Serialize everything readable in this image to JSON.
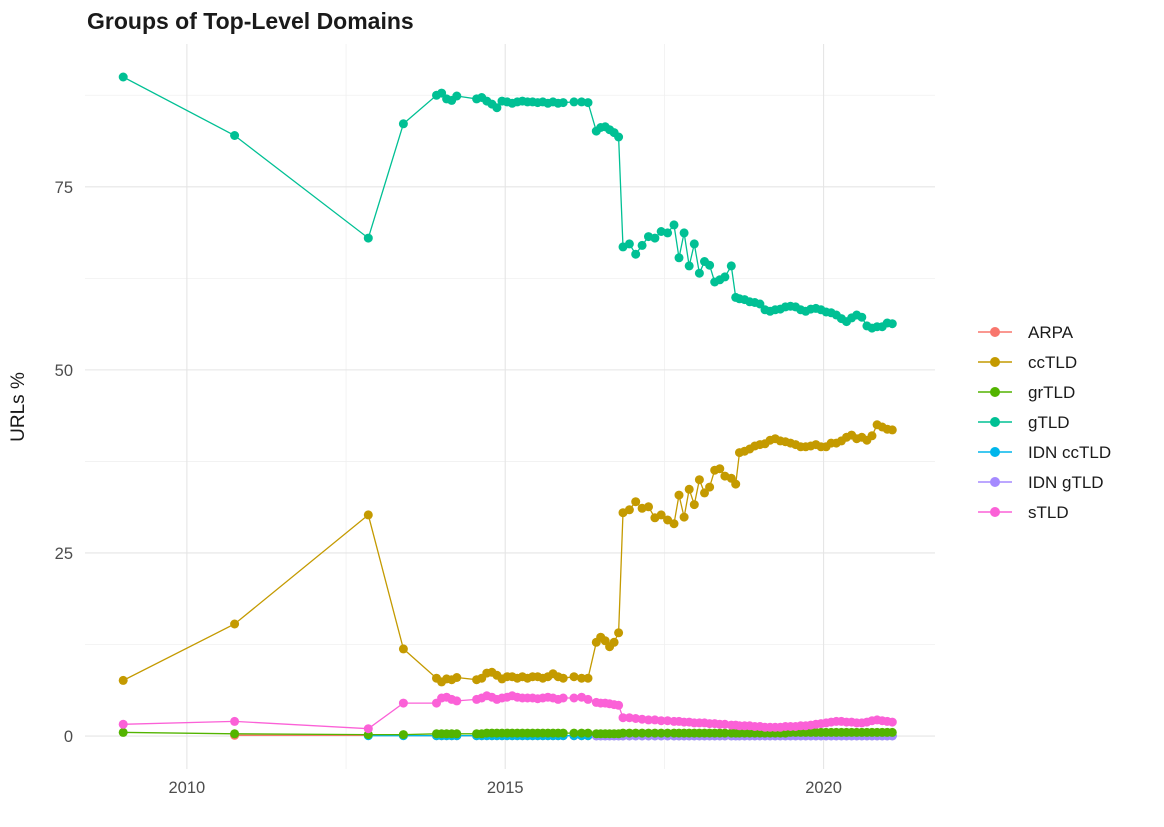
{
  "title": "Groups of Top-Level Domains",
  "chart_data": {
    "type": "line",
    "title": "Groups of Top-Level Domains",
    "xlabel": "",
    "ylabel": "URLs %",
    "legend_position": "right",
    "grid": "major and minor, light gray on white",
    "marker": "filled circles with connecting lines",
    "x_axis": {
      "tick_labels": [
        "2010",
        "2015",
        "2020"
      ],
      "ticks": [
        2010,
        2015,
        2020
      ],
      "minor": [
        2012.5,
        2017.5
      ],
      "range": [
        2008.4,
        2021.75
      ]
    },
    "y_axis": {
      "tick_labels": [
        "0",
        "25",
        "50",
        "75"
      ],
      "ticks": [
        0,
        25,
        50,
        75
      ],
      "minor": [
        12.5,
        37.5,
        62.5,
        87.5
      ],
      "range": [
        -4.5,
        94.5
      ]
    },
    "x": [
      2009.0,
      2010.75,
      2012.85,
      2013.4,
      2013.92,
      2014.0,
      2014.08,
      2014.16,
      2014.24,
      2014.55,
      2014.63,
      2014.71,
      2014.79,
      2014.87,
      2014.95,
      2015.03,
      2015.11,
      2015.19,
      2015.27,
      2015.35,
      2015.43,
      2015.51,
      2015.59,
      2015.67,
      2015.75,
      2015.83,
      2015.91,
      2016.08,
      2016.2,
      2016.3,
      2016.43,
      2016.5,
      2016.57,
      2016.64,
      2016.71,
      2016.78,
      2016.85,
      2016.95,
      2017.05,
      2017.15,
      2017.25,
      2017.35,
      2017.45,
      2017.55,
      2017.65,
      2017.73,
      2017.81,
      2017.89,
      2017.97,
      2018.05,
      2018.13,
      2018.21,
      2018.29,
      2018.37,
      2018.45,
      2018.55,
      2018.62,
      2018.68,
      2018.76,
      2018.84,
      2018.92,
      2019.0,
      2019.08,
      2019.16,
      2019.24,
      2019.32,
      2019.4,
      2019.48,
      2019.56,
      2019.64,
      2019.72,
      2019.8,
      2019.88,
      2019.96,
      2020.04,
      2020.12,
      2020.2,
      2020.28,
      2020.36,
      2020.44,
      2020.52,
      2020.6,
      2020.68,
      2020.76,
      2020.84,
      2020.92,
      2021.0,
      2021.08
    ],
    "series": [
      {
        "name": "ARPA",
        "color": "#F8766D",
        "values": [
          null,
          0.1,
          0.1,
          0.1,
          0.05,
          0.05,
          0.05,
          0.05,
          0.05,
          0.05,
          0.05,
          0.05,
          0.05,
          0.05,
          0.05,
          0.05,
          0.05,
          0.05,
          0.05,
          0.05,
          0.05,
          0.05,
          0.05,
          0.05,
          0.05,
          0.05,
          0.05,
          0.05,
          0.05,
          0.05,
          0.05,
          0.05,
          0.05,
          0.05,
          0.05,
          0.05,
          0.05,
          0.05,
          0.05,
          0.05,
          0.05,
          0.05,
          0.05,
          0.05,
          0.05,
          0.05,
          0.05,
          0.05,
          0.05,
          0.05,
          0.05,
          0.05,
          0.05,
          0.05,
          0.05,
          0.05,
          0.05,
          0.05,
          0.05,
          0.05,
          0.05,
          0.05,
          0.05,
          0.05,
          0.05,
          0.05,
          0.05,
          0.05,
          0.05,
          0.05,
          0.05,
          0.05,
          0.05,
          0.05,
          0.05,
          0.05,
          0.05,
          0.05,
          0.05,
          0.05,
          0.05,
          0.05,
          0.05,
          0.05,
          0.05,
          0.05,
          0.05,
          0.05
        ]
      },
      {
        "name": "ccTLD",
        "color": "#C49A00",
        "values": [
          7.6,
          15.3,
          30.2,
          11.9,
          7.9,
          7.4,
          7.8,
          7.7,
          8.0,
          7.7,
          7.9,
          8.6,
          8.7,
          8.3,
          7.8,
          8.1,
          8.1,
          7.9,
          8.1,
          7.9,
          8.1,
          8.1,
          7.9,
          8.1,
          8.5,
          8.1,
          7.9,
          8.1,
          7.9,
          7.9,
          12.8,
          13.5,
          13.0,
          12.2,
          12.8,
          14.1,
          30.5,
          30.9,
          32.0,
          31.1,
          31.3,
          29.8,
          30.2,
          29.5,
          29.0,
          32.9,
          29.9,
          33.7,
          31.6,
          35.0,
          33.2,
          34.0,
          36.3,
          36.5,
          35.5,
          35.2,
          34.4,
          38.7,
          38.9,
          39.2,
          39.6,
          39.8,
          39.9,
          40.4,
          40.6,
          40.3,
          40.2,
          40.0,
          39.8,
          39.5,
          39.5,
          39.6,
          39.8,
          39.5,
          39.5,
          40.0,
          40.0,
          40.3,
          40.8,
          41.1,
          40.6,
          40.8,
          40.4,
          41.0,
          42.5,
          42.2,
          41.9,
          41.8
        ]
      },
      {
        "name": "grTLD",
        "color": "#53B400",
        "values": [
          0.5,
          0.3,
          0.2,
          0.2,
          0.3,
          0.3,
          0.3,
          0.3,
          0.3,
          0.3,
          0.3,
          0.4,
          0.4,
          0.4,
          0.4,
          0.4,
          0.4,
          0.4,
          0.4,
          0.4,
          0.4,
          0.4,
          0.4,
          0.4,
          0.4,
          0.4,
          0.4,
          0.4,
          0.4,
          0.4,
          0.3,
          0.3,
          0.3,
          0.3,
          0.3,
          0.3,
          0.4,
          0.4,
          0.4,
          0.4,
          0.4,
          0.4,
          0.4,
          0.4,
          0.4,
          0.4,
          0.4,
          0.4,
          0.4,
          0.4,
          0.4,
          0.4,
          0.4,
          0.4,
          0.4,
          0.4,
          0.4,
          0.4,
          0.4,
          0.4,
          0.4,
          0.4,
          0.4,
          0.4,
          0.4,
          0.4,
          0.4,
          0.5,
          0.5,
          0.5,
          0.5,
          0.5,
          0.5,
          0.5,
          0.5,
          0.5,
          0.5,
          0.5,
          0.5,
          0.5,
          0.5,
          0.5,
          0.5,
          0.5,
          0.5,
          0.5,
          0.5,
          0.5
        ]
      },
      {
        "name": "gTLD",
        "color": "#00C094",
        "values": [
          90.0,
          82.0,
          68.0,
          83.6,
          87.5,
          87.8,
          87.0,
          86.8,
          87.4,
          87.0,
          87.2,
          86.7,
          86.3,
          85.8,
          86.7,
          86.6,
          86.4,
          86.6,
          86.7,
          86.6,
          86.6,
          86.5,
          86.6,
          86.4,
          86.6,
          86.4,
          86.5,
          86.6,
          86.6,
          86.5,
          82.6,
          83.1,
          83.2,
          82.8,
          82.4,
          81.8,
          66.8,
          67.2,
          65.8,
          67.0,
          68.2,
          68.0,
          68.9,
          68.7,
          69.8,
          65.3,
          68.7,
          64.2,
          67.2,
          63.2,
          64.8,
          64.3,
          62.0,
          62.3,
          62.7,
          64.2,
          59.9,
          59.7,
          59.6,
          59.3,
          59.2,
          59.0,
          58.2,
          58.0,
          58.2,
          58.3,
          58.6,
          58.7,
          58.6,
          58.2,
          58.0,
          58.3,
          58.4,
          58.2,
          57.9,
          57.8,
          57.5,
          57.0,
          56.6,
          57.1,
          57.5,
          57.2,
          56.0,
          55.7,
          55.9,
          55.9,
          56.4,
          56.3
        ]
      },
      {
        "name": "IDN ccTLD",
        "color": "#00B6EB",
        "values": [
          null,
          null,
          0.05,
          0.05,
          0.05,
          0.05,
          0.05,
          0.05,
          0.05,
          0.05,
          0.05,
          0.05,
          0.05,
          0.05,
          0.05,
          0.05,
          0.05,
          0.05,
          0.05,
          0.05,
          0.05,
          0.05,
          0.05,
          0.05,
          0.05,
          0.05,
          0.05,
          0.05,
          0.05,
          0.05,
          0.05,
          0.05,
          0.05,
          0.05,
          0.05,
          0.05,
          0.05,
          0.05,
          0.05,
          0.05,
          0.05,
          0.05,
          0.05,
          0.05,
          0.05,
          0.05,
          0.05,
          0.05,
          0.05,
          0.05,
          0.05,
          0.05,
          0.05,
          0.05,
          0.05,
          0.05,
          0.05,
          0.05,
          0.05,
          0.05,
          0.05,
          0.05,
          0.05,
          0.05,
          0.05,
          0.05,
          0.05,
          0.05,
          0.05,
          0.05,
          0.05,
          0.05,
          0.05,
          0.05,
          0.05,
          0.05,
          0.05,
          0.05,
          0.05,
          0.05,
          0.05,
          0.05,
          0.05,
          0.05,
          0.05,
          0.05,
          0.05,
          0.05
        ]
      },
      {
        "name": "IDN gTLD",
        "color": "#A58AFF",
        "values": [
          null,
          null,
          null,
          null,
          null,
          null,
          null,
          null,
          null,
          null,
          null,
          null,
          null,
          null,
          null,
          null,
          null,
          null,
          null,
          null,
          null,
          null,
          null,
          null,
          null,
          null,
          null,
          null,
          null,
          null,
          0.02,
          0.02,
          0.02,
          0.02,
          0.02,
          0.02,
          0.02,
          0.02,
          0.02,
          0.02,
          0.02,
          0.02,
          0.02,
          0.02,
          0.02,
          0.02,
          0.02,
          0.02,
          0.02,
          0.02,
          0.02,
          0.02,
          0.02,
          0.02,
          0.02,
          0.02,
          0.02,
          0.02,
          0.02,
          0.02,
          0.02,
          0.02,
          0.02,
          0.02,
          0.02,
          0.02,
          0.02,
          0.02,
          0.02,
          0.02,
          0.02,
          0.02,
          0.02,
          0.02,
          0.02,
          0.02,
          0.02,
          0.02,
          0.02,
          0.02,
          0.02,
          0.02,
          0.02,
          0.02,
          0.02,
          0.02,
          0.02,
          0.02
        ]
      },
      {
        "name": "sTLD",
        "color": "#FB61D7",
        "values": [
          1.6,
          2.0,
          1.0,
          4.5,
          4.5,
          5.2,
          5.3,
          5.0,
          4.8,
          5.0,
          5.2,
          5.5,
          5.3,
          5.0,
          5.2,
          5.3,
          5.5,
          5.3,
          5.2,
          5.2,
          5.2,
          5.1,
          5.2,
          5.3,
          5.2,
          5.0,
          5.2,
          5.2,
          5.3,
          5.0,
          4.6,
          4.5,
          4.5,
          4.4,
          4.3,
          4.2,
          2.5,
          2.5,
          2.4,
          2.3,
          2.2,
          2.2,
          2.1,
          2.1,
          2.0,
          2.0,
          1.9,
          1.9,
          1.8,
          1.8,
          1.8,
          1.7,
          1.7,
          1.6,
          1.6,
          1.5,
          1.5,
          1.4,
          1.4,
          1.4,
          1.3,
          1.3,
          1.2,
          1.2,
          1.2,
          1.2,
          1.3,
          1.3,
          1.3,
          1.4,
          1.4,
          1.5,
          1.6,
          1.7,
          1.8,
          1.9,
          2.0,
          2.0,
          1.9,
          1.9,
          1.8,
          1.8,
          1.9,
          2.1,
          2.2,
          2.1,
          2.0,
          1.9
        ]
      }
    ]
  },
  "colors": {
    "background": "#FFFFFF",
    "grid_major": "#E5E5E5",
    "grid_minor": "#F0F0F0",
    "tick_label": "#4D4D4D",
    "text": "#1A1A1A"
  }
}
